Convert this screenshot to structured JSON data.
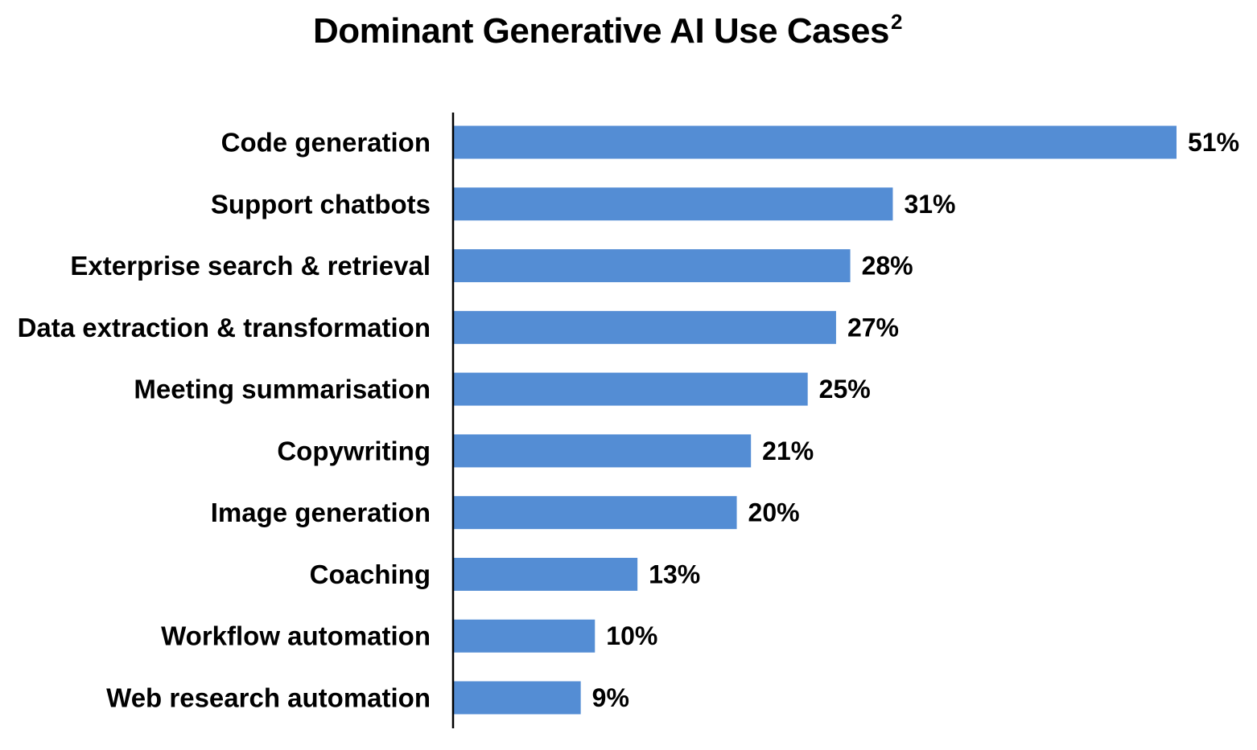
{
  "chart_data": {
    "type": "bar",
    "orientation": "horizontal",
    "title": "Dominant Generative AI Use Cases",
    "title_superscript": "2",
    "categories": [
      "Code generation",
      "Support chatbots",
      "Exterprise search & retrieval",
      "Data extraction & transformation",
      "Meeting summarisation",
      "Copywriting",
      "Image generation",
      "Coaching",
      "Workflow automation",
      "Web research automation"
    ],
    "values": [
      51,
      31,
      28,
      27,
      25,
      21,
      20,
      13,
      10,
      9
    ],
    "value_labels": [
      "51%",
      "31%",
      "28%",
      "27%",
      "25%",
      "21%",
      "20%",
      "13%",
      "10%",
      "9%"
    ],
    "unit": "%",
    "xlim": [
      0,
      51
    ],
    "grid": false,
    "legend": "none",
    "xlabel": "",
    "ylabel": "",
    "bar_color": "#548DD4"
  }
}
